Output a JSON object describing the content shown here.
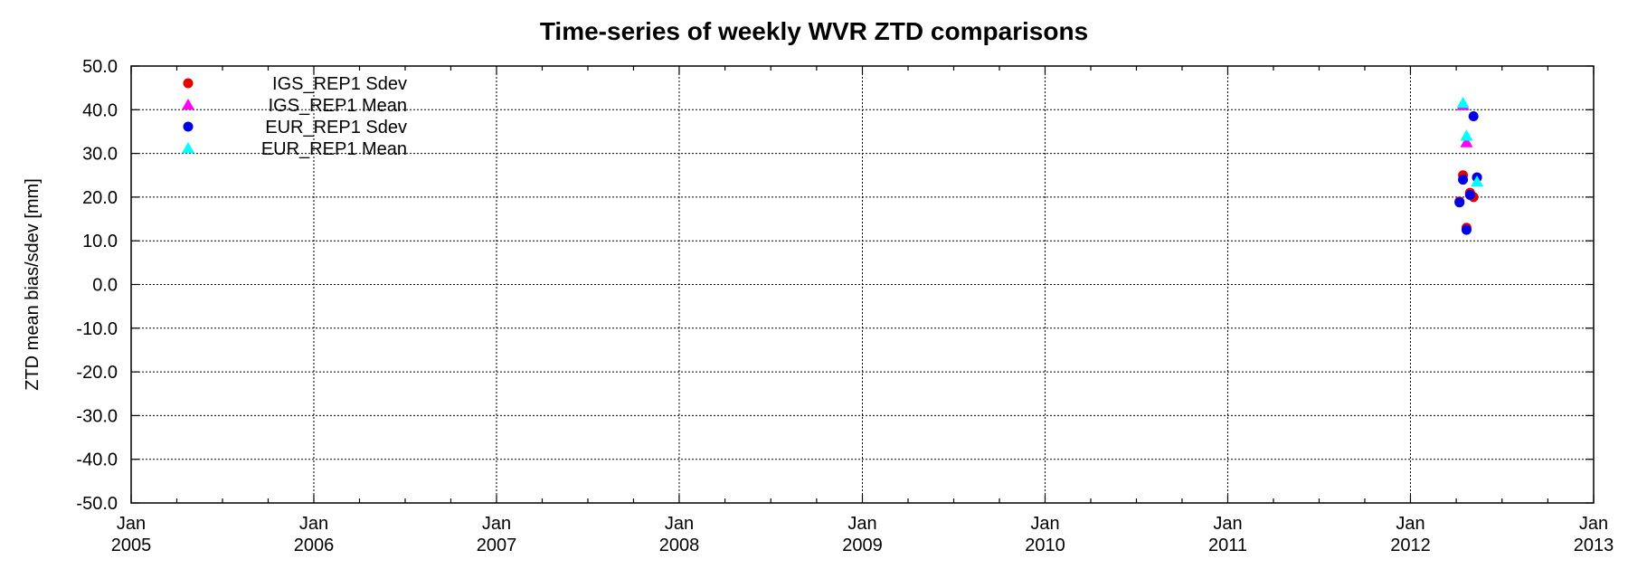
{
  "chart_data": {
    "type": "scatter",
    "title": "Time-series of weekly WVR ZTD comparisons",
    "xlabel": "",
    "ylabel": "ZTD mean bias/sdev [mm]",
    "xlim": [
      "2005-01-01",
      "2013-01-01"
    ],
    "ylim": [
      -50,
      50
    ],
    "x_ticks": [
      {
        "date": "2005-01-01",
        "month": "Jan",
        "year": "2005"
      },
      {
        "date": "2006-01-01",
        "month": "Jan",
        "year": "2006"
      },
      {
        "date": "2007-01-01",
        "month": "Jan",
        "year": "2007"
      },
      {
        "date": "2008-01-01",
        "month": "Jan",
        "year": "2008"
      },
      {
        "date": "2009-01-01",
        "month": "Jan",
        "year": "2009"
      },
      {
        "date": "2010-01-01",
        "month": "Jan",
        "year": "2010"
      },
      {
        "date": "2011-01-01",
        "month": "Jan",
        "year": "2011"
      },
      {
        "date": "2012-01-01",
        "month": "Jan",
        "year": "2012"
      },
      {
        "date": "2013-01-01",
        "month": "Jan",
        "year": "2013"
      }
    ],
    "y_ticks": [
      "50.0",
      "40.0",
      "30.0",
      "20.0",
      "10.0",
      "0.0",
      "-10.0",
      "-20.0",
      "-30.0",
      "-40.0",
      "-50.0"
    ],
    "grid": true,
    "legend_position": "top-left",
    "series": [
      {
        "name": "IGS_REP1 Sdev",
        "marker": "circle",
        "color": "#e60000",
        "points": [
          {
            "x": "2012-04-08",
            "y": 19.0
          },
          {
            "x": "2012-04-15",
            "y": 25.0
          },
          {
            "x": "2012-04-22",
            "y": 13.0
          },
          {
            "x": "2012-04-29",
            "y": 21.0
          },
          {
            "x": "2012-05-06",
            "y": 20.0
          },
          {
            "x": "2012-05-13",
            "y": 24.5
          }
        ]
      },
      {
        "name": "IGS_REP1 Mean",
        "marker": "triangle",
        "color": "#ff00ff",
        "points": [
          {
            "x": "2012-04-15",
            "y": 41.0
          },
          {
            "x": "2012-04-22",
            "y": 32.5
          }
        ]
      },
      {
        "name": "EUR_REP1 Sdev",
        "marker": "circle",
        "color": "#0000e6",
        "points": [
          {
            "x": "2012-04-08",
            "y": 18.8
          },
          {
            "x": "2012-04-15",
            "y": 24.0
          },
          {
            "x": "2012-04-22",
            "y": 12.5
          },
          {
            "x": "2012-04-29",
            "y": 20.5
          },
          {
            "x": "2012-05-06",
            "y": 38.5
          },
          {
            "x": "2012-05-13",
            "y": 24.5
          }
        ]
      },
      {
        "name": "EUR_REP1 Mean",
        "marker": "triangle",
        "color": "#00ffff",
        "points": [
          {
            "x": "2012-04-15",
            "y": 41.5
          },
          {
            "x": "2012-04-22",
            "y": 34.0
          },
          {
            "x": "2012-05-13",
            "y": 23.5
          }
        ]
      }
    ]
  }
}
